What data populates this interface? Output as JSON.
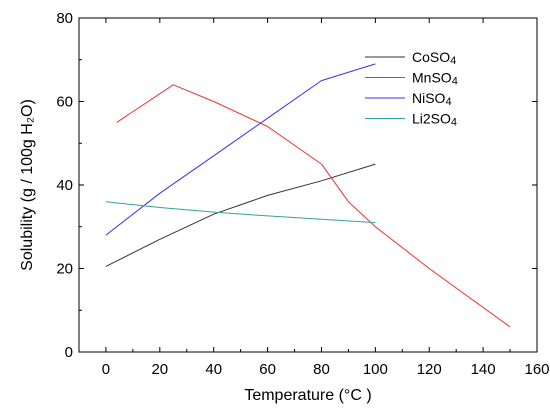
{
  "chart_data": {
    "type": "line",
    "title": "",
    "xlabel": "Temperature (°C )",
    "ylabel": "Solubility (g / 100g H₂O)",
    "xlim": [
      -10,
      160
    ],
    "ylim": [
      0,
      80
    ],
    "xticks": [
      0,
      20,
      40,
      60,
      80,
      100,
      120,
      140,
      160
    ],
    "yticks": [
      0,
      20,
      40,
      60,
      80
    ],
    "grid": false,
    "legend_position": "top-right",
    "series": [
      {
        "name": "CoSO4",
        "name_base": "CoSO",
        "name_sub": "4",
        "color": "#333333",
        "x": [
          0,
          20,
          40,
          60,
          80,
          100
        ],
        "y": [
          20.5,
          27.0,
          33.0,
          37.5,
          41.0,
          45.0
        ]
      },
      {
        "name": "MnSO4",
        "name_base": "MnSO",
        "name_sub": "4",
        "color": "#ee3333",
        "x": [
          4,
          25,
          40,
          60,
          80,
          90,
          100,
          120,
          150
        ],
        "y": [
          55.0,
          64.0,
          60.0,
          54.0,
          45.0,
          36.0,
          30.0,
          20.0,
          6.0
        ]
      },
      {
        "name": "NiSO4",
        "name_base": "NiSO",
        "name_sub": "4",
        "color": "#3333ee",
        "x": [
          0,
          20,
          40,
          60,
          80,
          100
        ],
        "y": [
          28.0,
          38.0,
          47.0,
          56.0,
          65.0,
          69.0
        ]
      },
      {
        "name": "Li2SO4",
        "name_base": "Li2SO",
        "name_sub": "4",
        "color": "#33a39a",
        "x": [
          0,
          20,
          40,
          60,
          80,
          100
        ],
        "y": [
          36.0,
          34.6,
          33.5,
          32.6,
          31.8,
          31.0
        ]
      }
    ]
  }
}
